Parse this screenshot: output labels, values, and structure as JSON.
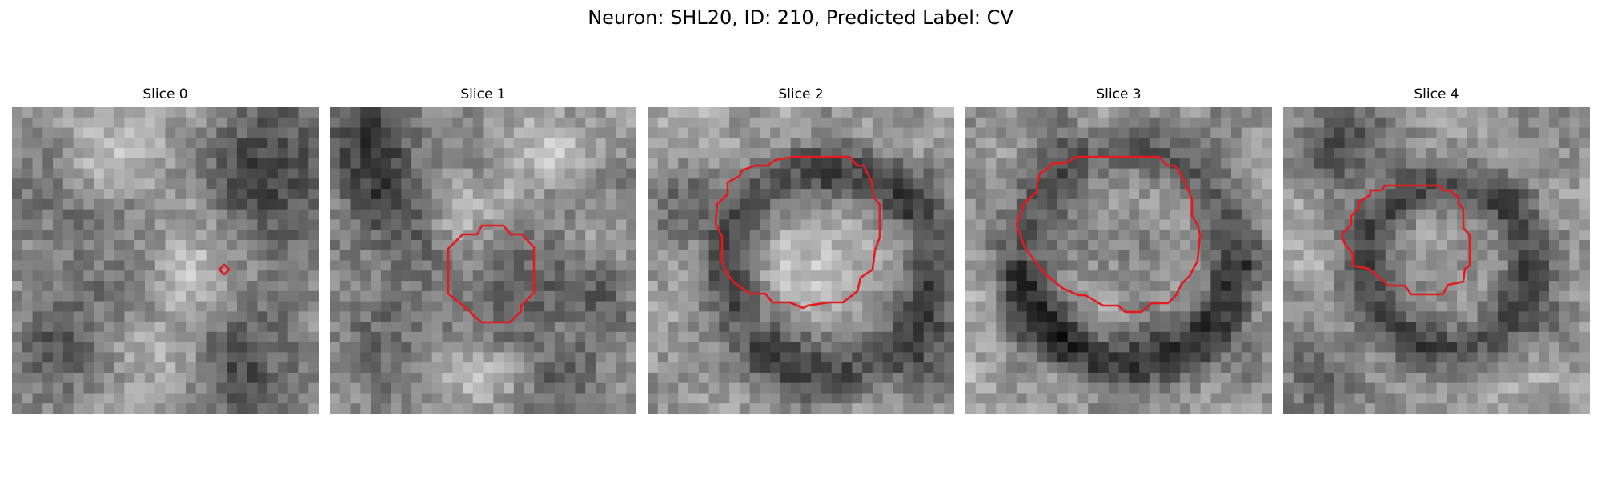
{
  "figure": {
    "suptitle": "Neuron: SHL20, ID: 210, Predicted Label: CV",
    "contour_color": "#e41a1c",
    "colormap": "gray",
    "panels": [
      {
        "title": "Slice 0",
        "contour": "tiny"
      },
      {
        "title": "Slice 1",
        "contour": "small"
      },
      {
        "title": "Slice 2",
        "contour": "large"
      },
      {
        "title": "Slice 3",
        "contour": "large"
      },
      {
        "title": "Slice 4",
        "contour": "medium"
      }
    ]
  }
}
